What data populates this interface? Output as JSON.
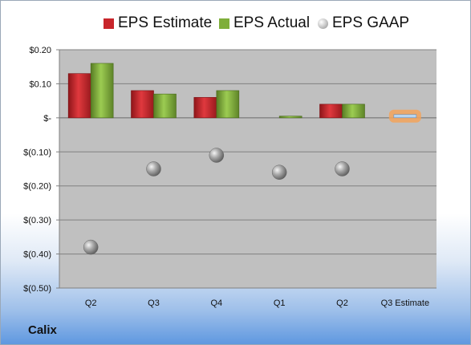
{
  "company": "Calix",
  "colors": {
    "estimate": "#c8252b",
    "actual": "#7fae3a",
    "gaap": "#a8a8a8",
    "plot_bg": "#c0c0c0",
    "highlight": "#f3a35a",
    "estimate_bar": "#b8d4ef"
  },
  "chart_data": {
    "type": "bar",
    "title": "",
    "xlabel": "",
    "ylabel": "",
    "categories": [
      "Q2",
      "Q3",
      "Q4",
      "Q1",
      "Q2",
      "Q3 Estimate"
    ],
    "ylim": [
      -0.5,
      0.2
    ],
    "yticks": [
      0.2,
      0.1,
      0,
      -0.1,
      -0.2,
      -0.3,
      -0.4,
      -0.5
    ],
    "ytick_labels": [
      "$0.20",
      "$0.10",
      "$-",
      "$(0.10)",
      "$(0.20)",
      "$(0.30)",
      "$(0.40)",
      "$(0.50)"
    ],
    "grid": true,
    "legend_placement": "top",
    "series": [
      {
        "name": "EPS Estimate",
        "kind": "bar",
        "values": [
          0.13,
          0.08,
          0.06,
          null,
          0.04,
          null
        ]
      },
      {
        "name": "EPS Actual",
        "kind": "bar",
        "values": [
          0.16,
          0.07,
          0.08,
          0.005,
          0.04,
          null
        ]
      },
      {
        "name": "EPS GAAP",
        "kind": "marker",
        "values": [
          -0.38,
          -0.15,
          -0.11,
          -0.16,
          -0.15,
          null
        ]
      }
    ],
    "estimate_next": {
      "category": "Q3 Estimate",
      "value": 0.005
    }
  }
}
